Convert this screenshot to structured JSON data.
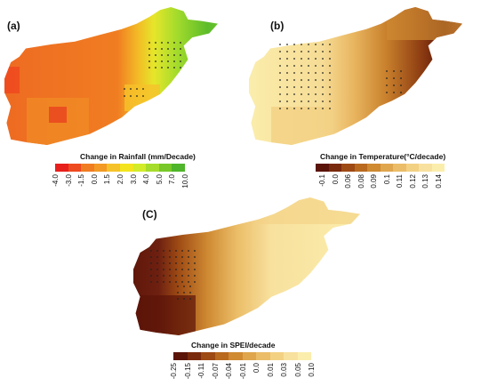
{
  "panels": [
    {
      "letter": "(a)",
      "legend_title": "Change in Rainfall (mm/Decade)",
      "legend_colors": [
        "#e8201c",
        "#ee4a1f",
        "#f07d22",
        "#f29a25",
        "#f6c22a",
        "#f3e41f",
        "#d2ec2a",
        "#a6dc2c",
        "#77c828",
        "#4fb52a"
      ],
      "legend_labels": [
        "-4.0",
        "-3.0",
        "-1.5",
        "0.0",
        "1.5",
        "2.0",
        "3.0",
        "4.0",
        "5.0",
        "7.0",
        "10.0"
      ]
    },
    {
      "letter": "(b)",
      "legend_title": "Change in Temperature(°C/decade)",
      "legend_colors": [
        "#5b1408",
        "#7a2a0c",
        "#9e4a14",
        "#b96a1f",
        "#cf8a32",
        "#dfa64e",
        "#ebbd68",
        "#f3d183",
        "#f8e19e",
        "#fbeead"
      ],
      "legend_labels": [
        "-0.1",
        "0.0",
        "0.06",
        "0.08",
        "0.09",
        "0.1",
        "0.11",
        "0.12",
        "0.13",
        "0.14"
      ]
    },
    {
      "letter": "(C)",
      "legend_title": "Change in SPEI/decade",
      "legend_colors": [
        "#5b1408",
        "#7a2a0c",
        "#9e4a14",
        "#b96a1f",
        "#cf8a32",
        "#dfa64e",
        "#ebbd68",
        "#f3d183",
        "#f8e19e",
        "#fbeead"
      ],
      "legend_labels": [
        "-0.25",
        "-0.15",
        "-0.11",
        "-0.07",
        "-0.04",
        "-0.01",
        "0.0",
        "0.01",
        "0.03",
        "0.05",
        "0.10"
      ]
    }
  ]
}
